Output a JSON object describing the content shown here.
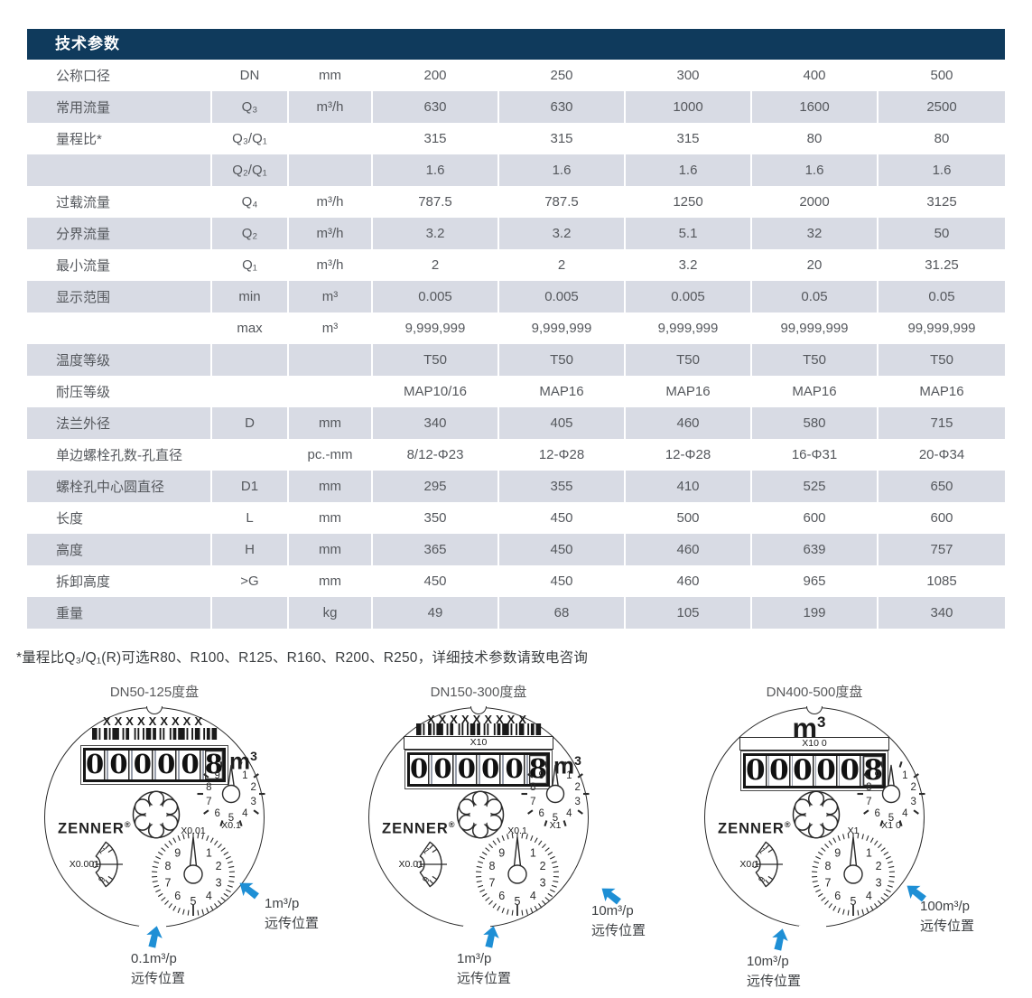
{
  "table": {
    "title": "技术参数",
    "rows": [
      {
        "label": "公称口径",
        "symbol": "DN",
        "unit": "mm",
        "values": [
          "200",
          "250",
          "300",
          "400",
          "500"
        ]
      },
      {
        "label": "常用流量",
        "symbol": "Q₃",
        "unit": "m³/h",
        "values": [
          "630",
          "630",
          "1000",
          "1600",
          "2500"
        ]
      },
      {
        "label": "量程比*",
        "symbol": "Q₃/Q₁",
        "unit": "",
        "values": [
          "315",
          "315",
          "315",
          "80",
          "80"
        ]
      },
      {
        "label": "",
        "symbol": "Q₂/Q₁",
        "unit": "",
        "values": [
          "1.6",
          "1.6",
          "1.6",
          "1.6",
          "1.6"
        ]
      },
      {
        "label": "过载流量",
        "symbol": "Q₄",
        "unit": "m³/h",
        "values": [
          "787.5",
          "787.5",
          "1250",
          "2000",
          "3125"
        ]
      },
      {
        "label": "分界流量",
        "symbol": "Q₂",
        "unit": "m³/h",
        "values": [
          "3.2",
          "3.2",
          "5.1",
          "32",
          "50"
        ]
      },
      {
        "label": "最小流量",
        "symbol": "Q₁",
        "unit": "m³/h",
        "values": [
          "2",
          "2",
          "3.2",
          "20",
          "31.25"
        ]
      },
      {
        "label": "显示范围",
        "symbol": "min",
        "unit": "m³",
        "values": [
          "0.005",
          "0.005",
          "0.005",
          "0.05",
          "0.05"
        ]
      },
      {
        "label": "",
        "symbol": "max",
        "unit": "m³",
        "values": [
          "9,999,999",
          "9,999,999",
          "9,999,999",
          "99,999,999",
          "99,999,999"
        ]
      },
      {
        "label": "温度等级",
        "symbol": "",
        "unit": "",
        "values": [
          "T50",
          "T50",
          "T50",
          "T50",
          "T50"
        ]
      },
      {
        "label": "耐压等级",
        "symbol": "",
        "unit": "",
        "values": [
          "MAP10/16",
          "MAP16",
          "MAP16",
          "MAP16",
          "MAP16"
        ]
      },
      {
        "label": "法兰外径",
        "symbol": "D",
        "unit": "mm",
        "values": [
          "340",
          "405",
          "460",
          "580",
          "715"
        ]
      },
      {
        "label": "单边螺栓孔数-孔直径",
        "symbol": "",
        "unit": "pc.-mm",
        "values": [
          "8/12-Φ23",
          "12-Φ28",
          "12-Φ28",
          "16-Φ31",
          "20-Φ34"
        ]
      },
      {
        "label": "螺栓孔中心圆直径",
        "symbol": "D1",
        "unit": "mm",
        "values": [
          "295",
          "355",
          "410",
          "525",
          "650"
        ]
      },
      {
        "label": "长度",
        "symbol": "L",
        "unit": "mm",
        "values": [
          "350",
          "450",
          "500",
          "600",
          "600"
        ]
      },
      {
        "label": "高度",
        "symbol": "H",
        "unit": "mm",
        "values": [
          "365",
          "450",
          "460",
          "639",
          "757"
        ]
      },
      {
        "label": "拆卸高度",
        "symbol": ">G",
        "unit": "mm",
        "values": [
          "450",
          "450",
          "460",
          "965",
          "1085"
        ]
      },
      {
        "label": "重量",
        "symbol": "",
        "unit": "kg",
        "values": [
          "49",
          "68",
          "105",
          "199",
          "340"
        ]
      }
    ]
  },
  "footnote": "*量程比Q₃/Q₁(R)可选R80、R100、R125、R160、R200、R250，详细技术参数请致电咨询",
  "dials_section": {
    "pointer_numbers": [
      "1",
      "2",
      "3",
      "4",
      "5",
      "6",
      "7",
      "8",
      "9"
    ],
    "sector_numbers": [
      "1",
      "0",
      "9"
    ],
    "dials": [
      {
        "title": "DN50-125度盘",
        "serial": "XXXXXXXXX",
        "band": "",
        "big_unit_base": "",
        "big_unit_exp": "",
        "unit_base": "m",
        "unit_exp": "3",
        "digits": [
          "0",
          "0",
          "0",
          "0",
          "0",
          "8"
        ],
        "brand": "ZENNER",
        "brand_reg": "®",
        "top_dial_label": "X0.1",
        "bottom_dial_label": "X0.01",
        "sector_label": "X0.001",
        "bottom_arrow": {
          "line1": "0.1m³/p",
          "line2": "远传位置"
        },
        "right_arrow": {
          "line1": "1m³/p",
          "line2": "远传位置"
        }
      },
      {
        "title": "DN150-300度盘",
        "serial": "XXXXXXXXX",
        "band": "X10",
        "big_unit_base": "",
        "big_unit_exp": "",
        "unit_base": "m",
        "unit_exp": "3",
        "digits": [
          "0",
          "0",
          "0",
          "0",
          "0",
          "8"
        ],
        "brand": "ZENNER",
        "brand_reg": "®",
        "top_dial_label": "X1",
        "bottom_dial_label": "X0.1",
        "sector_label": "X0.01",
        "bottom_arrow": {
          "line1": "1m³/p",
          "line2": "远传位置"
        },
        "right_arrow": {
          "line1": "10m³/p",
          "line2": "远传位置"
        }
      },
      {
        "title": "DN400-500度盘",
        "serial": "",
        "band": "X10  0",
        "big_unit_base": "m",
        "big_unit_exp": "3",
        "unit_base": "",
        "unit_exp": "",
        "digits": [
          "0",
          "0",
          "0",
          "0",
          "0",
          "8"
        ],
        "brand": "ZENNER",
        "brand_reg": "®",
        "top_dial_label": "X1 0",
        "bottom_dial_label": "X1",
        "sector_label": "X0.1",
        "bottom_arrow": {
          "line1": "10m³/p",
          "line2": "远传位置"
        },
        "right_arrow": {
          "line1": "100m³/p",
          "line2": "远传位置"
        }
      }
    ]
  },
  "colors": {
    "header_navy": "#0f3a5c",
    "row_gray": "#d8dbe4",
    "arrow_blue": "#1e8fd5",
    "line_ink": "#2b2b2b"
  }
}
